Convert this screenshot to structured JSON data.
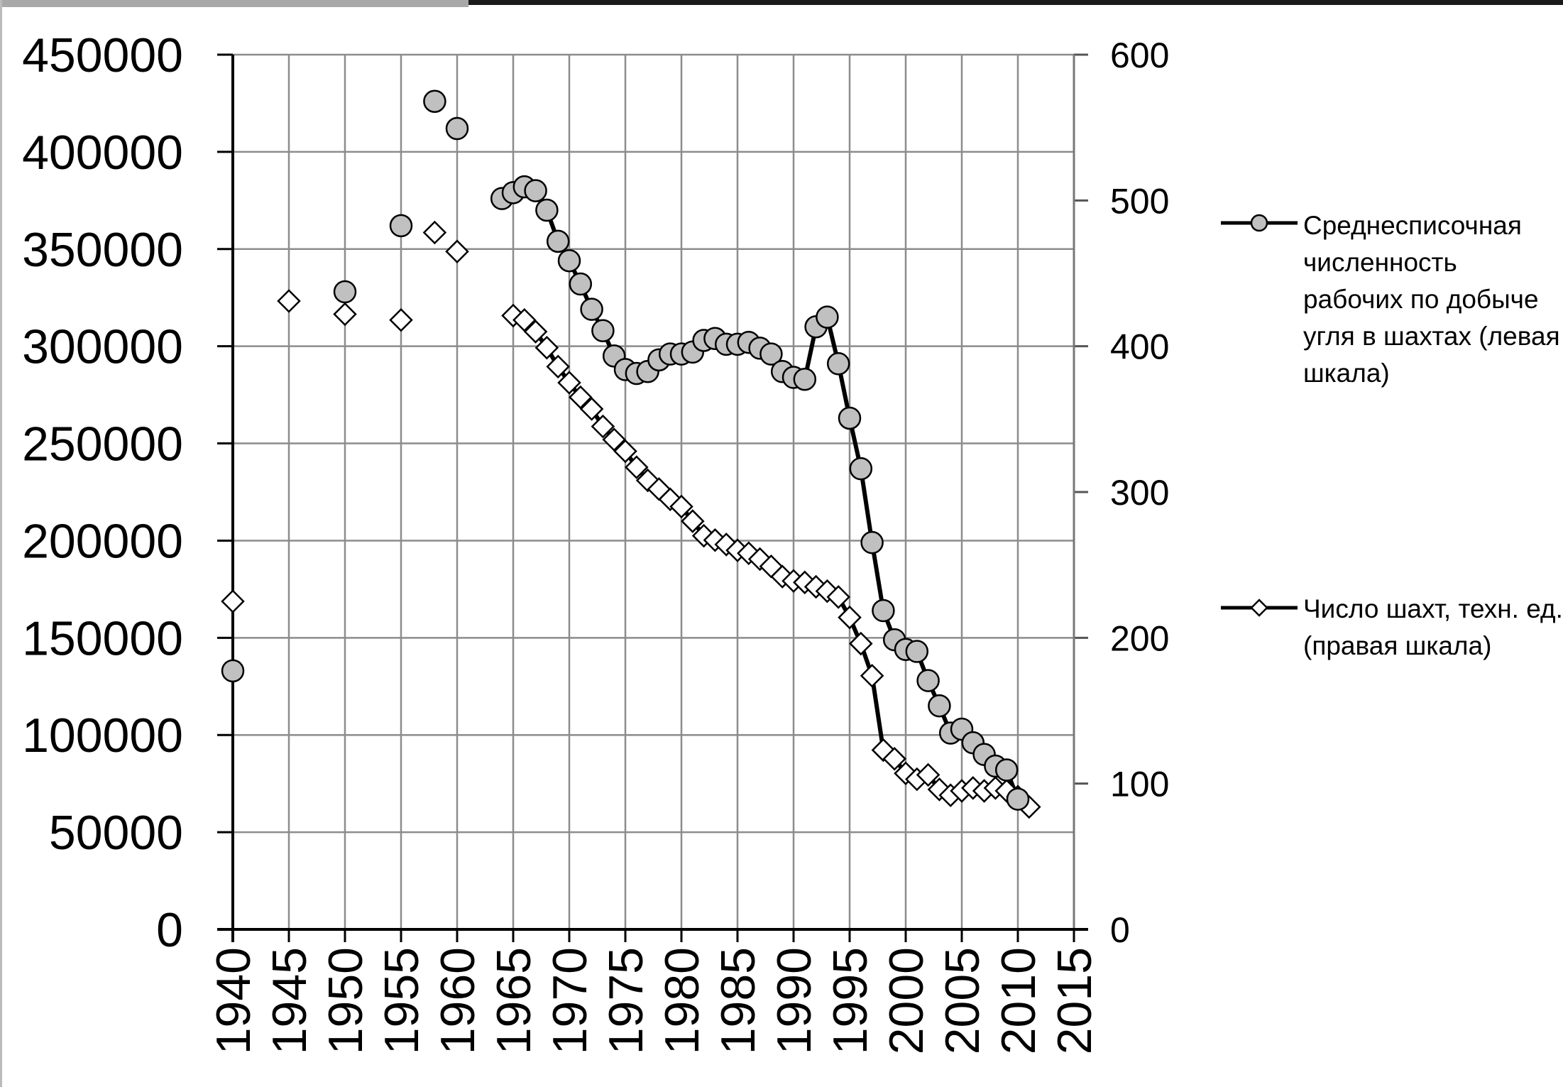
{
  "chart_data": {
    "type": "line",
    "x_ticks": [
      1940,
      1945,
      1950,
      1955,
      1960,
      1965,
      1970,
      1975,
      1980,
      1985,
      1990,
      1995,
      2000,
      2005,
      2010,
      2015
    ],
    "xlim": [
      1940,
      2015
    ],
    "y_left": {
      "ylim": [
        0,
        450000
      ],
      "ticks": [
        0,
        50000,
        100000,
        150000,
        200000,
        250000,
        300000,
        350000,
        400000,
        450000
      ]
    },
    "y_right": {
      "ylim": [
        0,
        600
      ],
      "ticks": [
        0,
        100,
        200,
        300,
        400,
        500,
        600
      ]
    },
    "grid": true,
    "legend_position": "right",
    "series": [
      {
        "name": "Среднесписочная численность рабочих по добыче угля в шахтах (левая шкала)",
        "axis": "left",
        "marker": "circle",
        "color": "#c0c0c0",
        "points": [
          [
            1940,
            133000
          ],
          [
            1950,
            328000
          ],
          [
            1955,
            362000
          ],
          [
            1958,
            426000
          ],
          [
            1960,
            412000
          ],
          [
            1964,
            376000
          ],
          [
            1965,
            379000
          ],
          [
            1966,
            382000
          ],
          [
            1967,
            380000
          ],
          [
            1968,
            370000
          ],
          [
            1969,
            354000
          ],
          [
            1970,
            344000
          ],
          [
            1971,
            332000
          ],
          [
            1972,
            319000
          ],
          [
            1973,
            308000
          ],
          [
            1974,
            295000
          ],
          [
            1975,
            288000
          ],
          [
            1976,
            286000
          ],
          [
            1977,
            287000
          ],
          [
            1978,
            293000
          ],
          [
            1979,
            296000
          ],
          [
            1980,
            296000
          ],
          [
            1981,
            297000
          ],
          [
            1982,
            303000
          ],
          [
            1983,
            304000
          ],
          [
            1984,
            301000
          ],
          [
            1985,
            301000
          ],
          [
            1986,
            302000
          ],
          [
            1987,
            299000
          ],
          [
            1988,
            296000
          ],
          [
            1989,
            287000
          ],
          [
            1990,
            284000
          ],
          [
            1991,
            283000
          ],
          [
            1992,
            310000
          ],
          [
            1993,
            315000
          ],
          [
            1994,
            291000
          ],
          [
            1995,
            263000
          ],
          [
            1996,
            237000
          ],
          [
            1997,
            199000
          ],
          [
            1998,
            164000
          ],
          [
            1999,
            149000
          ],
          [
            2000,
            144000
          ],
          [
            2001,
            143000
          ],
          [
            2002,
            128000
          ],
          [
            2003,
            115000
          ],
          [
            2004,
            101000
          ],
          [
            2005,
            103000
          ],
          [
            2006,
            96000
          ],
          [
            2007,
            90000
          ],
          [
            2008,
            84000
          ],
          [
            2009,
            82000
          ],
          [
            2010,
            67000
          ]
        ]
      },
      {
        "name": "Число шахт, техн. ед. (правая шкала)",
        "axis": "right",
        "marker": "diamond",
        "color": "#ffffff",
        "points": [
          [
            1940,
            225
          ],
          [
            1945,
            431
          ],
          [
            1950,
            422
          ],
          [
            1955,
            418
          ],
          [
            1958,
            478
          ],
          [
            1960,
            465
          ],
          [
            1965,
            421
          ],
          [
            1966,
            418
          ],
          [
            1967,
            410
          ],
          [
            1968,
            399
          ],
          [
            1969,
            386
          ],
          [
            1970,
            375
          ],
          [
            1971,
            365
          ],
          [
            1972,
            357
          ],
          [
            1973,
            345
          ],
          [
            1974,
            336
          ],
          [
            1975,
            328
          ],
          [
            1976,
            317
          ],
          [
            1977,
            308
          ],
          [
            1978,
            302
          ],
          [
            1979,
            295
          ],
          [
            1980,
            290
          ],
          [
            1981,
            280
          ],
          [
            1982,
            270
          ],
          [
            1983,
            267
          ],
          [
            1984,
            264
          ],
          [
            1985,
            260
          ],
          [
            1986,
            258
          ],
          [
            1987,
            254
          ],
          [
            1988,
            249
          ],
          [
            1989,
            242
          ],
          [
            1990,
            239
          ],
          [
            1991,
            238
          ],
          [
            1992,
            235
          ],
          [
            1993,
            232
          ],
          [
            1994,
            228
          ],
          [
            1995,
            214
          ],
          [
            1996,
            196
          ],
          [
            1997,
            174
          ],
          [
            1998,
            123
          ],
          [
            1999,
            117
          ],
          [
            2000,
            107
          ],
          [
            2001,
            103
          ],
          [
            2002,
            106
          ],
          [
            2003,
            96
          ],
          [
            2004,
            92
          ],
          [
            2005,
            95
          ],
          [
            2006,
            97
          ],
          [
            2007,
            95
          ],
          [
            2008,
            97
          ],
          [
            2009,
            95
          ],
          [
            2010,
            91
          ],
          [
            2011,
            84
          ]
        ]
      }
    ]
  }
}
